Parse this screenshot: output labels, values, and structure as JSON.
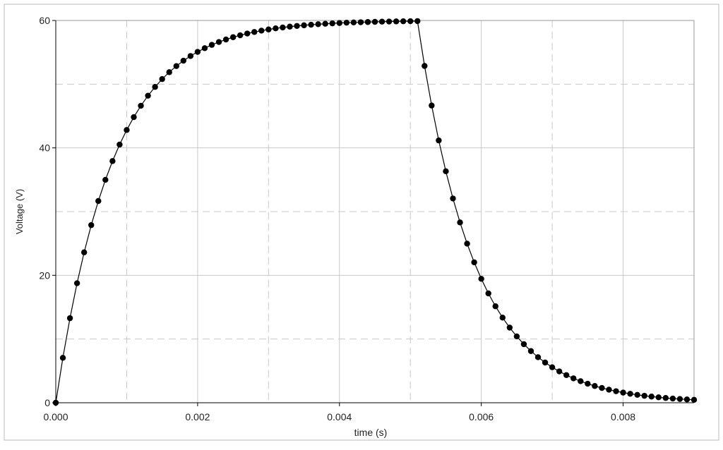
{
  "chart_data": {
    "type": "line",
    "xlabel": "time (s)",
    "ylabel": "Voltage (V)",
    "x": [
      0,
      0.0001,
      0.0002,
      0.0003,
      0.0004,
      0.0005,
      0.0006,
      0.0007,
      0.0008,
      0.0009,
      0.001,
      0.0011,
      0.0012,
      0.0013,
      0.0014,
      0.0015,
      0.0016,
      0.0017,
      0.0018,
      0.0019,
      0.002,
      0.0021,
      0.0022,
      0.0023,
      0.0024,
      0.0025,
      0.0026,
      0.0027,
      0.0028,
      0.0029,
      0.003,
      0.0031,
      0.0032,
      0.0033,
      0.0034,
      0.0035,
      0.0036,
      0.0037,
      0.0038,
      0.0039,
      0.004,
      0.0041,
      0.0042,
      0.0043,
      0.0044,
      0.0045,
      0.0046,
      0.0047,
      0.0048,
      0.0049,
      0.005,
      0.0051,
      0.0052,
      0.0053,
      0.0054,
      0.0055,
      0.0056,
      0.0057,
      0.0058,
      0.0059,
      0.006,
      0.0061,
      0.0062,
      0.0063,
      0.0064,
      0.0065,
      0.0066,
      0.0067,
      0.0068,
      0.0069,
      0.007,
      0.0071,
      0.0072,
      0.0073,
      0.0074,
      0.0075,
      0.0076,
      0.0077,
      0.0078,
      0.0079,
      0.008,
      0.0081,
      0.0082,
      0.0083,
      0.0084,
      0.0085,
      0.0086,
      0.0087,
      0.0088,
      0.0089,
      0.009
    ],
    "values": [
      0,
      7.05,
      13.27,
      18.76,
      23.61,
      27.88,
      31.66,
      34.99,
      37.93,
      40.52,
      42.81,
      44.83,
      46.61,
      48.19,
      49.57,
      50.8,
      51.88,
      52.84,
      53.68,
      54.42,
      55.07,
      55.65,
      56.17,
      56.62,
      57.01,
      57.37,
      57.67,
      57.95,
      58.19,
      58.4,
      58.59,
      58.76,
      58.9,
      59.03,
      59.14,
      59.24,
      59.33,
      59.41,
      59.48,
      59.54,
      59.6,
      59.65,
      59.69,
      59.72,
      59.75,
      59.78,
      59.81,
      59.83,
      59.85,
      59.87,
      59.88,
      59.9,
      52.86,
      46.65,
      41.17,
      36.33,
      32.06,
      28.3,
      24.97,
      22.04,
      19.45,
      17.16,
      15.14,
      13.36,
      11.79,
      10.41,
      9.19,
      8.11,
      7.15,
      6.31,
      5.57,
      4.92,
      4.34,
      3.83,
      3.38,
      2.98,
      2.63,
      2.32,
      2.05,
      1.81,
      1.59,
      1.41,
      1.24,
      1.09,
      0.97,
      0.85,
      0.75,
      0.66,
      0.59,
      0.52,
      0.46
    ],
    "color": "#000000",
    "markers": true,
    "grid": true,
    "xlim": [
      0,
      0.009
    ],
    "ylim": [
      0,
      60
    ],
    "xticks": [
      {
        "value": 0,
        "label": "0.000"
      },
      0.002,
      0.004,
      0.006,
      0.008
    ],
    "yticks": [
      0,
      20,
      40,
      60
    ],
    "xminor": [
      0.001,
      0.003,
      0.005,
      0.007
    ],
    "yminor": [
      10,
      30,
      50
    ]
  }
}
